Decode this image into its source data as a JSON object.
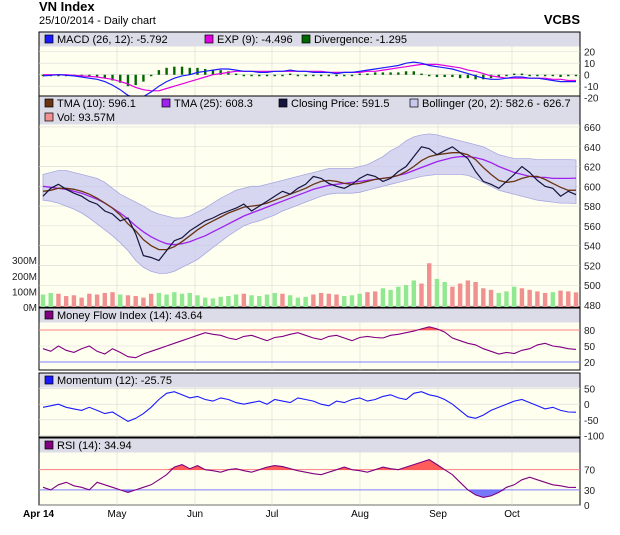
{
  "header": {
    "title": "VN Index",
    "subtitle": "25/10/2014 - Daily chart",
    "brand": "VCBS"
  },
  "x_axis": {
    "months": [
      "Apr 14",
      "May",
      "Jun",
      "Jul",
      "Aug",
      "Sep",
      "Oct"
    ]
  },
  "colors": {
    "plot_bg": "#fffff0",
    "legend_bg": "#dcdce8",
    "grid": "#d8d8d8",
    "macd": "#1a1aff",
    "exp": "#e000e0",
    "divergence": "#006600",
    "tma10": "#6b3410",
    "tma25": "#a020f0",
    "closing": "#14143c",
    "bollinger_fill": "#c8c8f0",
    "bollinger_edge": "#a8a8e0",
    "vol_up": "#90e890",
    "vol_down": "#f09090",
    "mfi": "#800080",
    "mfi_fill": "#ff4040",
    "momentum": "#1a1aff",
    "rsi": "#800080",
    "rsi_over": "#ff4040",
    "rsi_under": "#6060ff",
    "ref_line_red": "#ff8080",
    "ref_line_blue": "#8080ff"
  },
  "chart_data": [
    {
      "type": "line",
      "panel": "macd",
      "legend": [
        {
          "label": "MACD (26, 12): -5.792"
        },
        {
          "label": "EXP (9): -4.496"
        },
        {
          "label": "Divergence: -1.295"
        }
      ],
      "y_ticks": [
        "20",
        "10",
        "0",
        "-10",
        "-20"
      ],
      "ylim": [
        -22,
        25
      ],
      "series": [
        {
          "name": "MACD (26, 12)",
          "values": [
            -1,
            -0.5,
            0,
            -0.5,
            -1,
            -2,
            -3,
            -4,
            -6,
            -9,
            -13,
            -18,
            -20,
            -19,
            -15,
            -10,
            -6,
            -3,
            -1,
            0,
            2,
            3,
            4,
            5,
            5,
            4,
            3,
            3,
            2,
            2,
            3,
            3,
            4,
            3,
            3,
            2,
            2,
            2,
            1,
            2,
            2,
            3,
            4,
            5,
            6,
            7,
            8,
            10,
            11,
            10,
            8,
            7,
            6,
            5,
            3,
            1,
            -1,
            -3,
            -4,
            -4,
            -3,
            -2,
            -2,
            -3,
            -3,
            -4,
            -5,
            -6,
            -6,
            -6
          ]
        },
        {
          "name": "EXP (9)",
          "values": [
            0,
            0,
            0,
            0,
            -0.5,
            -1,
            -1.5,
            -2,
            -3,
            -4,
            -6,
            -8,
            -11,
            -13,
            -14,
            -14,
            -12,
            -10,
            -8,
            -6,
            -4,
            -2,
            0,
            1,
            2,
            3,
            3,
            3,
            3,
            3,
            3,
            3,
            3,
            3,
            3,
            3,
            3,
            2,
            2,
            2,
            2,
            2,
            3,
            3,
            4,
            5,
            6,
            7,
            8,
            9,
            9,
            9,
            8,
            7,
            6,
            4,
            3,
            1,
            -1,
            -2,
            -3,
            -3,
            -3,
            -3,
            -3,
            -3,
            -4,
            -4,
            -5,
            -5
          ]
        },
        {
          "name": "Divergence",
          "values": [
            -1,
            -0.5,
            0,
            -0.5,
            -0.5,
            -1,
            -1.5,
            -2,
            -3,
            -5,
            -7,
            -10,
            -9,
            -6,
            -1,
            4,
            6,
            7,
            7,
            6,
            6,
            5,
            4,
            4,
            3,
            1,
            0,
            0,
            -1,
            -1,
            0,
            0,
            1,
            0,
            0,
            -1,
            -1,
            0,
            -1,
            0,
            0,
            1,
            1,
            2,
            2,
            2,
            2,
            3,
            3,
            1,
            -1,
            -2,
            -2,
            -2,
            -3,
            -3,
            -4,
            -4,
            -3,
            -2,
            0,
            1,
            1,
            0,
            0,
            -1,
            -1,
            -2,
            -1,
            -1
          ]
        }
      ]
    },
    {
      "type": "line",
      "panel": "price",
      "legend": [
        {
          "label": "TMA (10): 596.1"
        },
        {
          "label": "TMA (25): 608.3"
        },
        {
          "label": "Closing Price: 591.5"
        },
        {
          "label": "Bollinger (20, 2): 582.6 - 626.7"
        },
        {
          "label": "Vol: 93.57M"
        }
      ],
      "y_ticks": [
        "660",
        "640",
        "620",
        "600",
        "580",
        "560",
        "540",
        "520",
        "500",
        "480"
      ],
      "ylim": [
        478,
        663
      ],
      "series": [
        {
          "name": "Closing Price",
          "values": [
            590,
            598,
            602,
            597,
            593,
            590,
            585,
            582,
            575,
            572,
            565,
            568,
            552,
            530,
            528,
            525,
            535,
            545,
            548,
            555,
            560,
            565,
            568,
            572,
            575,
            578,
            582,
            575,
            580,
            585,
            590,
            595,
            592,
            598,
            602,
            610,
            608,
            603,
            600,
            598,
            602,
            608,
            612,
            610,
            605,
            608,
            615,
            620,
            630,
            640,
            638,
            632,
            636,
            640,
            634,
            628,
            615,
            605,
            602,
            598,
            605,
            612,
            620,
            614,
            606,
            600,
            598,
            590,
            595,
            591.5
          ]
        },
        {
          "name": "TMA (10)",
          "values": [
            595,
            596,
            598,
            598,
            597,
            595,
            592,
            588,
            583,
            578,
            571,
            562,
            555,
            546,
            540,
            536,
            536,
            539,
            544,
            550,
            556,
            561,
            565,
            569,
            573,
            576,
            579,
            580,
            581,
            583,
            586,
            589,
            592,
            595,
            598,
            602,
            605,
            606,
            605,
            603,
            602,
            603,
            605,
            607,
            608,
            609,
            611,
            615,
            620,
            626,
            630,
            632,
            633,
            634,
            634,
            632,
            627,
            619,
            612,
            606,
            604,
            605,
            608,
            610,
            610,
            607,
            603,
            599,
            596,
            596.1
          ]
        },
        {
          "name": "TMA (25)",
          "values": [
            600,
            599,
            598,
            597,
            595,
            593,
            590,
            587,
            583,
            578,
            573,
            567,
            560,
            554,
            549,
            545,
            542,
            541,
            542,
            544,
            547,
            550,
            554,
            558,
            562,
            566,
            570,
            573,
            576,
            579,
            582,
            585,
            588,
            591,
            594,
            597,
            599,
            601,
            602,
            603,
            604,
            605,
            606,
            607,
            608,
            609,
            611,
            613,
            616,
            619,
            622,
            625,
            627,
            629,
            630,
            630,
            629,
            627,
            624,
            620,
            617,
            614,
            612,
            610,
            609,
            609,
            608,
            608,
            608,
            608.3
          ]
        },
        {
          "name": "Bollinger Upper",
          "values": [
            612,
            614,
            616,
            616,
            614,
            612,
            610,
            608,
            604,
            598,
            592,
            588,
            584,
            580,
            575,
            572,
            570,
            568,
            568,
            570,
            574,
            578,
            583,
            588,
            592,
            596,
            598,
            600,
            600,
            602,
            604,
            606,
            608,
            610,
            612,
            614,
            616,
            618,
            618,
            618,
            618,
            620,
            622,
            626,
            630,
            636,
            640,
            646,
            650,
            652,
            653,
            652,
            650,
            648,
            646,
            644,
            642,
            640,
            636,
            632,
            630,
            628,
            628,
            628,
            627,
            627,
            627,
            627,
            627,
            626.7
          ]
        },
        {
          "name": "Bollinger Lower",
          "values": [
            586,
            585,
            583,
            580,
            577,
            573,
            568,
            562,
            556,
            550,
            543,
            535,
            525,
            518,
            514,
            512,
            512,
            514,
            518,
            522,
            526,
            532,
            538,
            544,
            550,
            555,
            560,
            563,
            565,
            568,
            571,
            575,
            578,
            581,
            584,
            587,
            590,
            592,
            593,
            593,
            593,
            594,
            596,
            598,
            600,
            602,
            604,
            606,
            608,
            610,
            611,
            612,
            612,
            612,
            612,
            611,
            608,
            604,
            600,
            596,
            594,
            592,
            590,
            588,
            586,
            585,
            584,
            583,
            583,
            582.6
          ]
        }
      ],
      "volume_axis": {
        "ticks": [
          "300M",
          "200M",
          "100M",
          "0M"
        ]
      },
      "volume": [
        80,
        90,
        85,
        70,
        75,
        60,
        85,
        80,
        90,
        95,
        80,
        75,
        70,
        60,
        85,
        90,
        80,
        95,
        85,
        90,
        75,
        60,
        55,
        65,
        70,
        80,
        85,
        75,
        70,
        80,
        90,
        85,
        75,
        60,
        65,
        80,
        90,
        85,
        80,
        70,
        75,
        85,
        95,
        100,
        120,
        110,
        130,
        140,
        170,
        150,
        280,
        180,
        160,
        130,
        150,
        170,
        160,
        120,
        110,
        90,
        100,
        130,
        120,
        110,
        100,
        90,
        95,
        105,
        100,
        93.57
      ],
      "volume_up": [
        true,
        true,
        false,
        false,
        false,
        false,
        false,
        false,
        false,
        false,
        true,
        false,
        false,
        false,
        false,
        true,
        true,
        true,
        true,
        true,
        true,
        true,
        true,
        true,
        true,
        true,
        false,
        true,
        true,
        true,
        true,
        false,
        true,
        true,
        true,
        false,
        false,
        false,
        false,
        true,
        true,
        true,
        false,
        false,
        true,
        true,
        true,
        true,
        true,
        false,
        false,
        true,
        true,
        false,
        false,
        false,
        false,
        false,
        false,
        true,
        true,
        true,
        false,
        false,
        false,
        false,
        true,
        false,
        false,
        false
      ]
    },
    {
      "type": "line",
      "panel": "mfi",
      "legend": [
        {
          "label": "Money Flow Index (14): 43.64"
        }
      ],
      "y_ticks": [
        "80",
        "50",
        "20"
      ],
      "ylim": [
        5,
        95
      ],
      "reference_lines": [
        80,
        20
      ],
      "series": [
        {
          "name": "Money Flow Index (14)",
          "values": [
            45,
            40,
            50,
            42,
            38,
            45,
            50,
            40,
            35,
            45,
            38,
            30,
            28,
            35,
            40,
            45,
            50,
            55,
            60,
            65,
            70,
            75,
            72,
            70,
            65,
            62,
            68,
            70,
            65,
            60,
            66,
            68,
            72,
            75,
            70,
            65,
            62,
            68,
            70,
            65,
            60,
            66,
            68,
            66,
            65,
            70,
            72,
            75,
            78,
            82,
            86,
            82,
            76,
            65,
            60,
            55,
            52,
            45,
            40,
            35,
            38,
            36,
            42,
            45,
            52,
            55,
            50,
            48,
            45,
            43.64
          ]
        }
      ]
    },
    {
      "type": "line",
      "panel": "momentum",
      "legend": [
        {
          "label": "Momentum (12): -25.75"
        }
      ],
      "y_ticks": [
        "50",
        "0",
        "-50",
        "-100"
      ],
      "ylim": [
        -105,
        55
      ],
      "series": [
        {
          "name": "Momentum (12)",
          "values": [
            -10,
            -5,
            0,
            -10,
            -15,
            -20,
            -10,
            -20,
            -30,
            -25,
            -40,
            -55,
            -45,
            -30,
            -10,
            15,
            35,
            40,
            30,
            20,
            25,
            15,
            10,
            20,
            15,
            5,
            0,
            5,
            10,
            0,
            15,
            10,
            5,
            20,
            15,
            10,
            0,
            -5,
            10,
            5,
            15,
            20,
            10,
            15,
            25,
            30,
            20,
            15,
            35,
            40,
            30,
            25,
            15,
            0,
            -20,
            -40,
            -45,
            -35,
            -20,
            -10,
            0,
            10,
            15,
            5,
            -5,
            -15,
            -10,
            -20,
            -25,
            -25.75
          ]
        }
      ]
    },
    {
      "type": "line",
      "panel": "rsi",
      "legend": [
        {
          "label": "RSI (14): 34.94"
        }
      ],
      "y_ticks": [
        "70",
        "30",
        "0"
      ],
      "ylim": [
        0,
        105
      ],
      "reference_lines": [
        70,
        30
      ],
      "series": [
        {
          "name": "RSI (14)",
          "values": [
            35,
            30,
            40,
            45,
            38,
            35,
            30,
            45,
            40,
            35,
            30,
            25,
            30,
            35,
            40,
            50,
            60,
            75,
            80,
            72,
            78,
            70,
            68,
            65,
            70,
            72,
            68,
            65,
            70,
            75,
            78,
            76,
            72,
            68,
            65,
            62,
            60,
            65,
            70,
            75,
            70,
            68,
            65,
            70,
            75,
            72,
            70,
            75,
            80,
            85,
            90,
            80,
            70,
            60,
            45,
            30,
            20,
            15,
            18,
            25,
            35,
            40,
            50,
            55,
            50,
            45,
            40,
            38,
            35,
            34.94
          ]
        }
      ]
    }
  ]
}
